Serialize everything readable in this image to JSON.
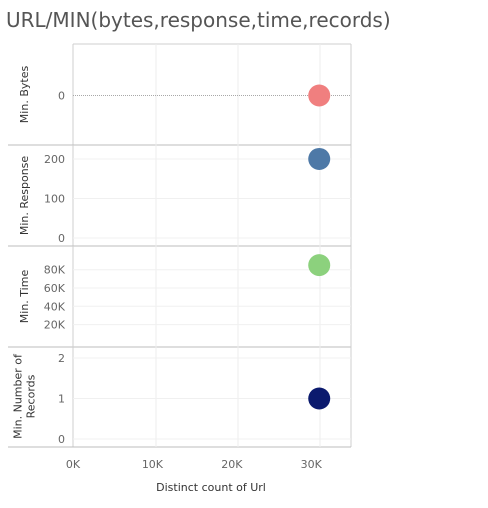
{
  "chart_data": {
    "type": "scatter",
    "title": "URL/MIN(bytes,response,time,records)",
    "xlabel": "Distinct count of Url",
    "x_ticks": [
      "0K",
      "10K",
      "20K",
      "30K"
    ],
    "xlim": [
      0,
      35000
    ],
    "point_x": 31000,
    "panels": [
      {
        "key": "bytes",
        "label": [
          "Min. Bytes"
        ],
        "ylim": [
          -1,
          1
        ],
        "ticks": [
          0
        ],
        "tick_labels": [
          "0"
        ],
        "value": 0,
        "color": "#f07f7f",
        "zero_line": true
      },
      {
        "key": "response",
        "label": [
          "Min. Response"
        ],
        "ylim": [
          0,
          210
        ],
        "ticks": [
          0,
          100,
          200
        ],
        "tick_labels": [
          "0",
          "100",
          "200"
        ],
        "value": 200,
        "color": "#4e79a7",
        "zero_line": false
      },
      {
        "key": "time",
        "label": [
          "Min. Time"
        ],
        "ylim": [
          13000,
          95000
        ],
        "ticks": [
          20000,
          40000,
          60000,
          80000
        ],
        "tick_labels": [
          "20K",
          "40K",
          "60K",
          "80K"
        ],
        "value": 85000,
        "color": "#8cd17d",
        "zero_line": false
      },
      {
        "key": "records",
        "label": [
          "Min. Number of",
          "Records"
        ],
        "ylim": [
          0,
          2.1
        ],
        "ticks": [
          0,
          1,
          2
        ],
        "tick_labels": [
          "0",
          "1",
          "2"
        ],
        "value": 1,
        "color": "#0b1a6e",
        "zero_line": false
      }
    ]
  }
}
